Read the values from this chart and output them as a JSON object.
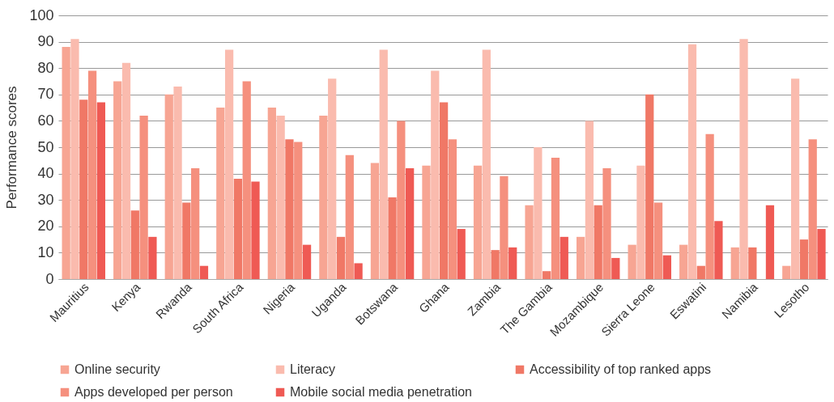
{
  "chart_data": {
    "type": "bar",
    "ylabel": "Performance scores",
    "categories": [
      "Mauritius",
      "Kenya",
      "Rwanda",
      "South Africa",
      "Nigeria",
      "Uganda",
      "Botswana",
      "Ghana",
      "Zambia",
      "The Gambia",
      "Mozambique",
      "Sierra Leone",
      "Eswatini",
      "Namibia",
      "Lesotho"
    ],
    "series": [
      {
        "name": "Online security",
        "color": "#f7a593",
        "values": [
          88,
          75,
          70,
          65,
          65,
          62,
          44,
          43,
          43,
          28,
          16,
          13,
          13,
          12,
          5
        ]
      },
      {
        "name": "Literacy",
        "color": "#fabbae",
        "values": [
          91,
          82,
          73,
          87,
          62,
          76,
          87,
          79,
          87,
          50,
          60,
          43,
          89,
          91,
          76
        ]
      },
      {
        "name": "Accessibility of top ranked apps",
        "color": "#f07866",
        "values": [
          68,
          26,
          29,
          38,
          53,
          16,
          31,
          67,
          11,
          3,
          28,
          70,
          5,
          12,
          15
        ]
      },
      {
        "name": "Apps developed per person",
        "color": "#f5907e",
        "values": [
          79,
          62,
          42,
          75,
          52,
          47,
          60,
          53,
          39,
          46,
          42,
          29,
          55,
          0,
          53
        ]
      },
      {
        "name": "Mobile social media penetration",
        "color": "#ef5a54",
        "values": [
          67,
          16,
          5,
          37,
          13,
          6,
          42,
          19,
          12,
          16,
          8,
          9,
          22,
          28,
          19
        ]
      }
    ],
    "ylim": [
      0,
      100
    ],
    "yticks": [
      0,
      10,
      20,
      30,
      40,
      50,
      60,
      70,
      80,
      90,
      100
    ],
    "grid": "y",
    "legend": "bottom"
  }
}
